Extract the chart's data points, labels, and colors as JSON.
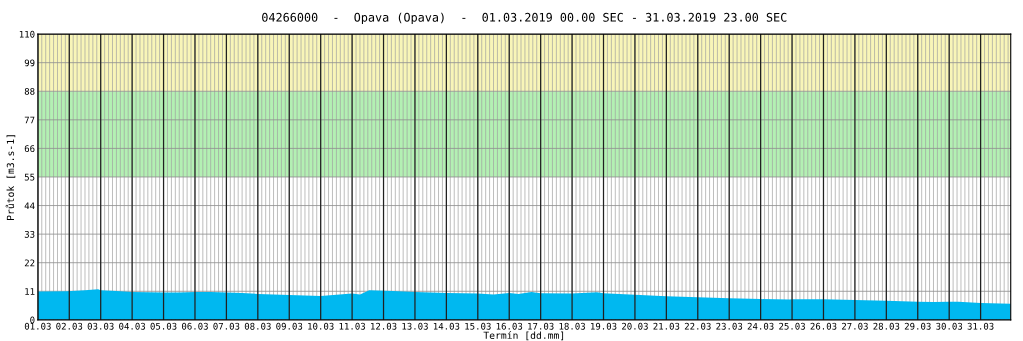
{
  "chart_data": {
    "type": "area",
    "title": "04266000  -  Opava (Opava)  -  01.03.2019 00.00 SEC - 31.03.2019 23.00 SEC",
    "xlabel": "Termín [dd.mm]",
    "ylabel": "Průtok [m3.s-1]",
    "x": [
      "2019-03-01T00:00",
      "2019-03-01T22:00",
      "2019-03-02T12:00",
      "2019-03-02T22:00",
      "2019-03-03T00:00",
      "2019-03-03T12:00",
      "2019-03-04T00:00",
      "2019-03-04T12:00",
      "2019-03-05T00:00",
      "2019-03-05T12:00",
      "2019-03-06T00:00",
      "2019-03-06T12:00",
      "2019-03-07T00:00",
      "2019-03-07T12:00",
      "2019-03-08T00:00",
      "2019-03-09T00:00",
      "2019-03-10T00:00",
      "2019-03-11T00:00",
      "2019-03-11T06:00",
      "2019-03-11T09:00",
      "2019-03-11T13:00",
      "2019-03-12T07:00",
      "2019-03-13T00:00",
      "2019-03-14T00:00",
      "2019-03-15T00:00",
      "2019-03-15T12:00",
      "2019-03-16T00:00",
      "2019-03-16T07:00",
      "2019-03-16T17:00",
      "2019-03-17T00:00",
      "2019-03-18T00:00",
      "2019-03-18T19:00",
      "2019-03-19T00:00",
      "2019-03-20T00:00",
      "2019-03-21T00:00",
      "2019-03-22T00:00",
      "2019-03-23T00:00",
      "2019-03-24T00:00",
      "2019-03-24T22:00",
      "2019-03-25T00:00",
      "2019-03-26T00:00",
      "2019-03-27T00:00",
      "2019-03-28T00:00",
      "2019-03-29T00:00",
      "2019-03-29T12:00",
      "2019-03-30T00:00",
      "2019-03-30T07:00",
      "2019-03-31T00:00",
      "2019-03-31T23:00"
    ],
    "series": [
      {
        "color": "#00b8f0",
        "values": [
          10.9,
          11.0,
          11.4,
          11.8,
          11.4,
          11.1,
          10.7,
          10.6,
          10.5,
          10.5,
          10.7,
          10.7,
          10.5,
          10.3,
          10.0,
          9.6,
          9.2,
          10.1,
          9.8,
          10.4,
          11.4,
          11.1,
          10.7,
          10.3,
          10.1,
          9.8,
          10.3,
          10.0,
          10.7,
          10.2,
          10.1,
          10.6,
          10.2,
          9.7,
          9.1,
          8.7,
          8.3,
          8.0,
          7.8,
          7.9,
          7.9,
          7.6,
          7.4,
          7.0,
          6.9,
          7.0,
          7.0,
          6.5,
          6.2
        ]
      }
    ],
    "xlim": [
      "2019-03-01T00:00",
      "2019-03-31T23:00"
    ],
    "xticks": [
      {
        "value": "2019-03-01",
        "label": "01.03"
      },
      {
        "value": "2019-03-02",
        "label": "02.03"
      },
      {
        "value": "2019-03-03",
        "label": "03.03"
      },
      {
        "value": "2019-03-04",
        "label": "04.03"
      },
      {
        "value": "2019-03-05",
        "label": "05.03"
      },
      {
        "value": "2019-03-06",
        "label": "06.03"
      },
      {
        "value": "2019-03-07",
        "label": "07.03"
      },
      {
        "value": "2019-03-08",
        "label": "08.03"
      },
      {
        "value": "2019-03-09",
        "label": "09.03"
      },
      {
        "value": "2019-03-10",
        "label": "10.03"
      },
      {
        "value": "2019-03-11",
        "label": "11.03"
      },
      {
        "value": "2019-03-12",
        "label": "12.03"
      },
      {
        "value": "2019-03-13",
        "label": "13.03"
      },
      {
        "value": "2019-03-14",
        "label": "14.03"
      },
      {
        "value": "2019-03-15",
        "label": "15.03"
      },
      {
        "value": "2019-03-16",
        "label": "16.03"
      },
      {
        "value": "2019-03-17",
        "label": "17.03"
      },
      {
        "value": "2019-03-18",
        "label": "18.03"
      },
      {
        "value": "2019-03-19",
        "label": "19.03"
      },
      {
        "value": "2019-03-20",
        "label": "20.03"
      },
      {
        "value": "2019-03-21",
        "label": "21.03"
      },
      {
        "value": "2019-03-22",
        "label": "22.03"
      },
      {
        "value": "2019-03-23",
        "label": "23.03"
      },
      {
        "value": "2019-03-24",
        "label": "24.03"
      },
      {
        "value": "2019-03-25",
        "label": "25.03"
      },
      {
        "value": "2019-03-26",
        "label": "26.03"
      },
      {
        "value": "2019-03-27",
        "label": "27.03"
      },
      {
        "value": "2019-03-28",
        "label": "28.03"
      },
      {
        "value": "2019-03-29",
        "label": "29.03"
      },
      {
        "value": "2019-03-30",
        "label": "30.03"
      },
      {
        "value": "2019-03-31",
        "label": "31.03"
      }
    ],
    "ylim": [
      0,
      110
    ],
    "yticks": [
      0,
      11,
      22,
      33,
      44,
      55,
      66,
      77,
      88,
      99,
      110
    ],
    "bands": [
      {
        "axis": "y",
        "from": 55,
        "to": 88,
        "color": "#b3f0b3"
      },
      {
        "axis": "y",
        "from": 88,
        "to": 110,
        "color": "#f8f5b8"
      }
    ],
    "grid": true
  }
}
